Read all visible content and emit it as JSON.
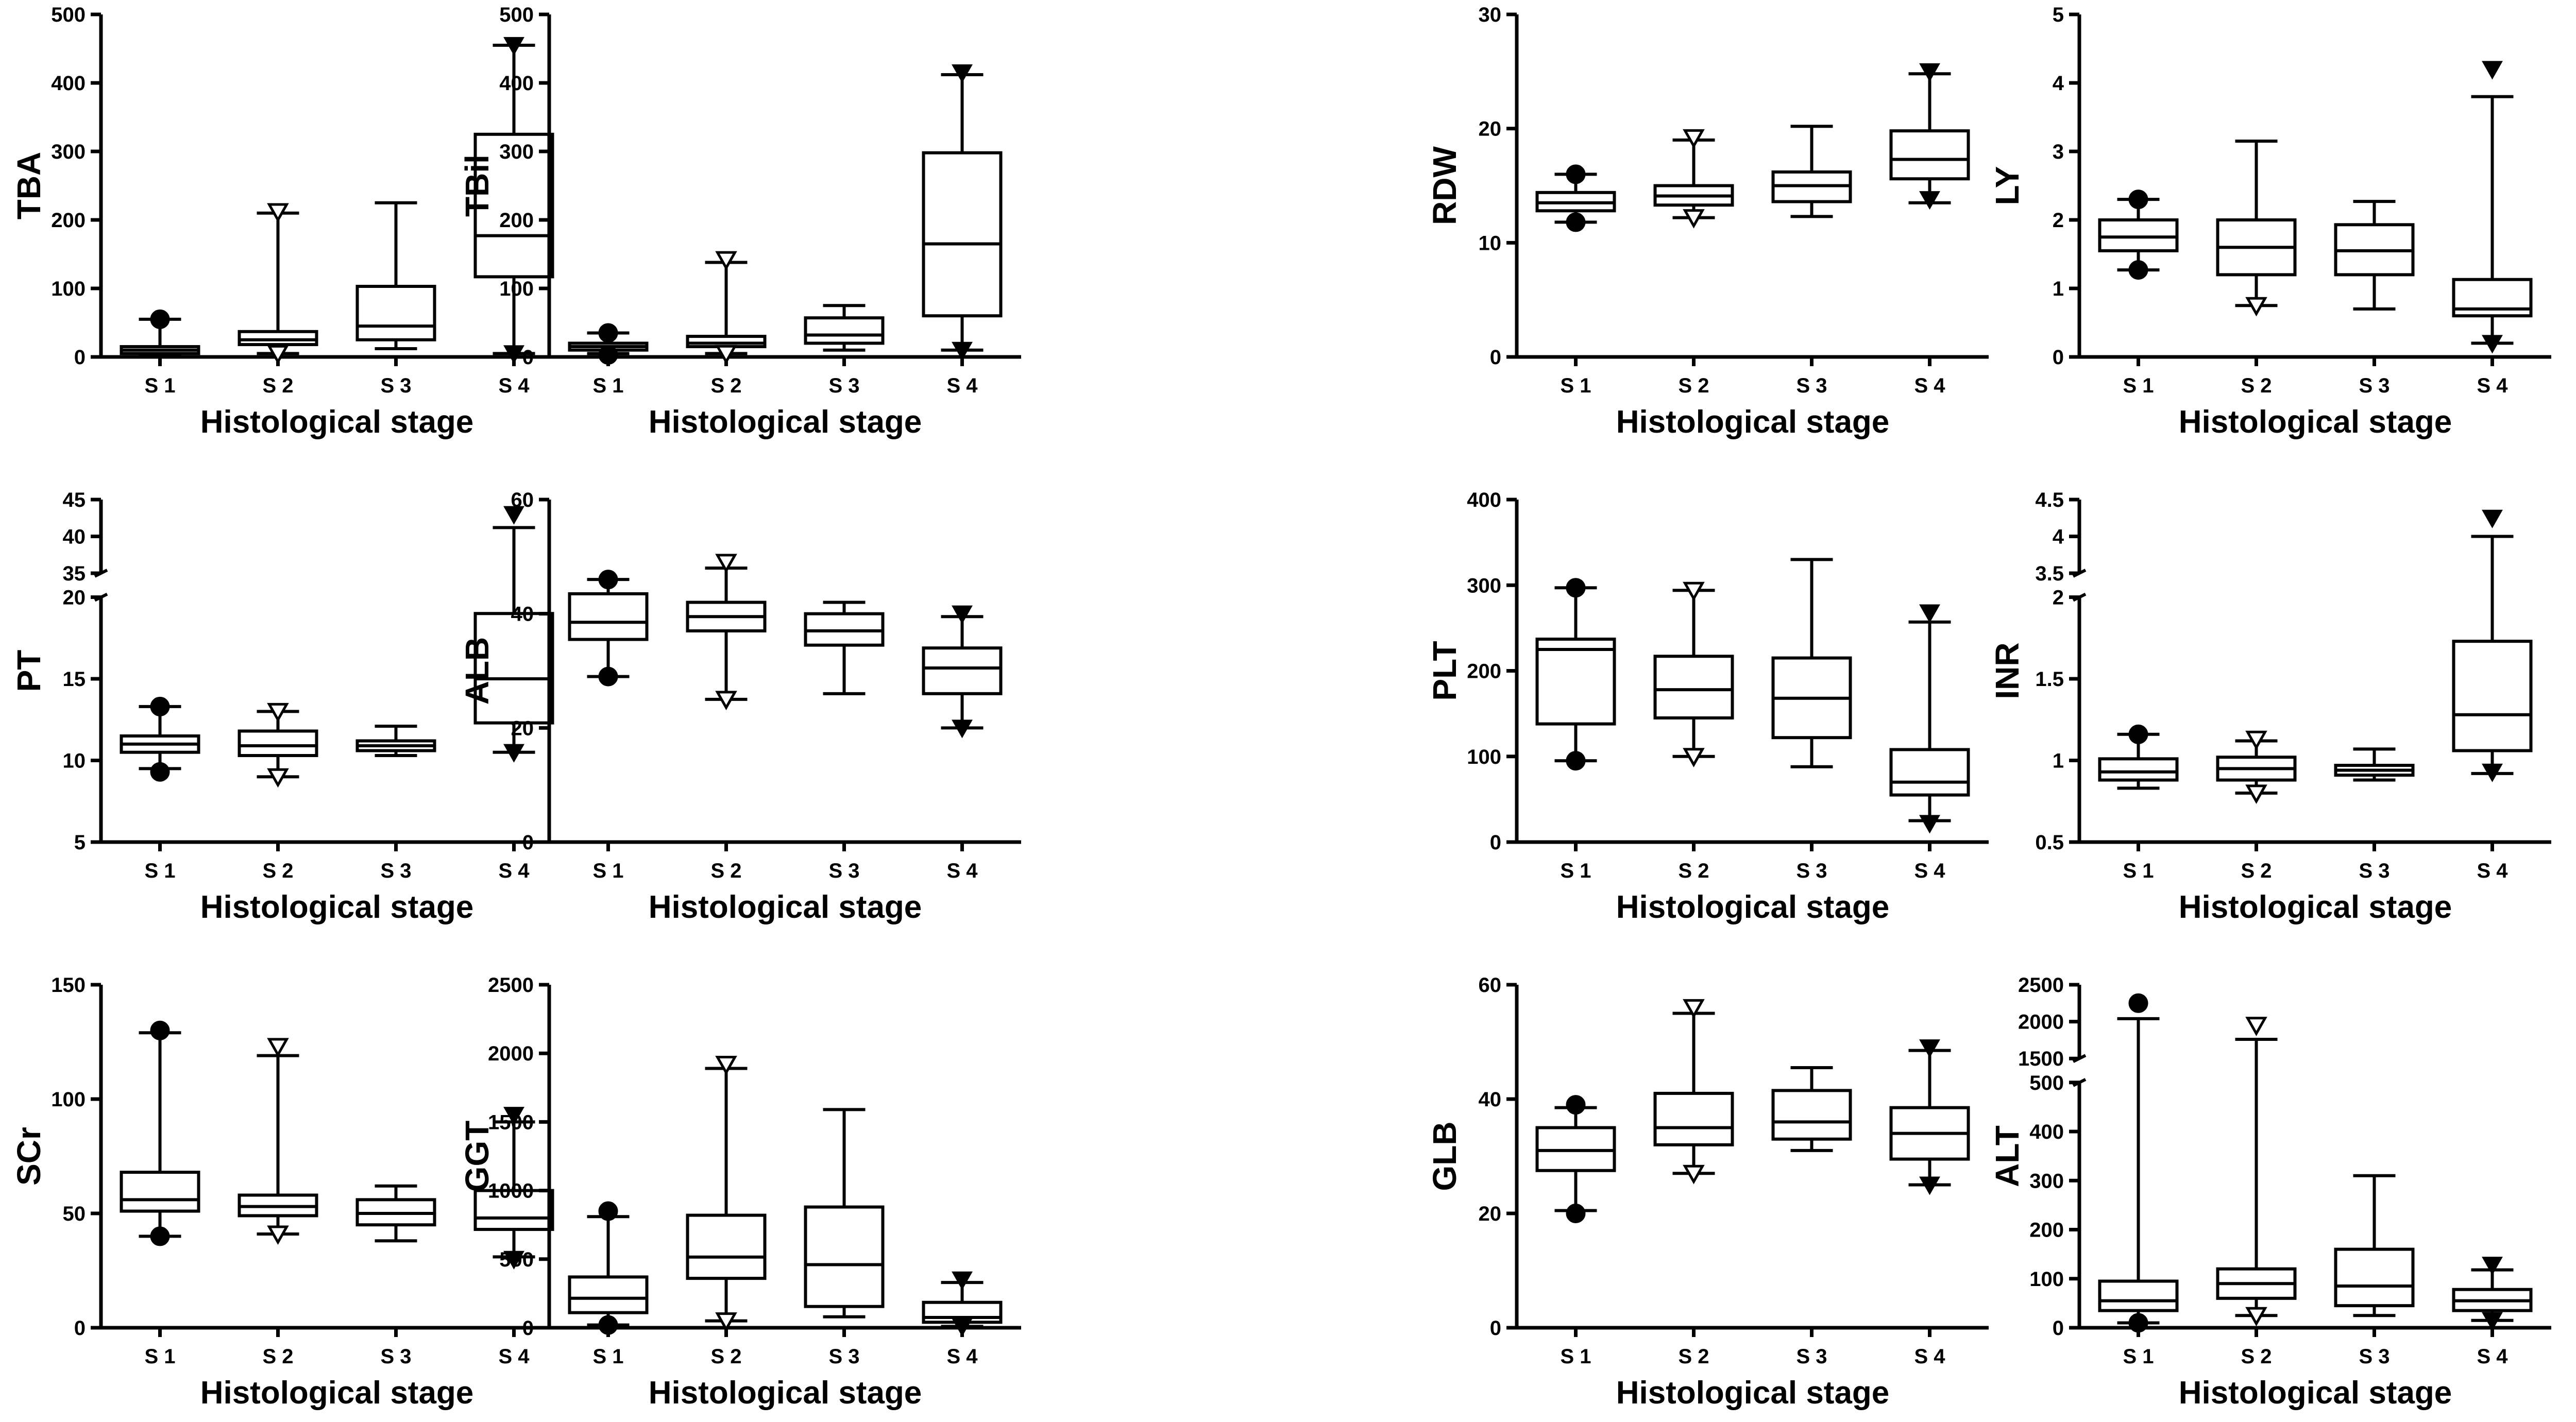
{
  "chart_data": [
    {
      "type": "box",
      "title": "",
      "ylabel": "TBA",
      "xlabel": "Histological stage",
      "ylim": [
        0,
        500
      ],
      "yticks": [
        0,
        100,
        200,
        300,
        400,
        500
      ],
      "categories": [
        "S 1",
        "S 2",
        "S 3",
        "S 4"
      ],
      "markers": [
        "circle-filled",
        "triangle-down-open",
        "square-filled",
        "triangle-down-filled"
      ],
      "boxes": [
        {
          "min": 1,
          "q1": 5,
          "median": 10,
          "q3": 15,
          "max": 55,
          "outliers": [
            55
          ]
        },
        {
          "min": 5,
          "q1": 18,
          "median": 25,
          "q3": 37,
          "max": 210,
          "outliers": [
            212,
            5
          ]
        },
        {
          "min": 12,
          "q1": 25,
          "median": 45,
          "q3": 103,
          "max": 225,
          "outliers": []
        },
        {
          "min": 5,
          "q1": 117,
          "median": 177,
          "q3": 325,
          "max": 455,
          "outliers": [
            455,
            5
          ]
        }
      ]
    },
    {
      "type": "box",
      "title": "",
      "ylabel": "TBil",
      "xlabel": "Histological stage",
      "ylim": [
        0,
        500
      ],
      "yticks": [
        0,
        100,
        200,
        300,
        400,
        500
      ],
      "categories": [
        "S 1",
        "S 2",
        "S 3",
        "S 4"
      ],
      "markers": [
        "circle-filled",
        "triangle-down-open",
        "square-filled",
        "triangle-down-filled"
      ],
      "boxes": [
        {
          "min": 5,
          "q1": 10,
          "median": 15,
          "q3": 20,
          "max": 35,
          "outliers": [
            35,
            3
          ]
        },
        {
          "min": 5,
          "q1": 15,
          "median": 20,
          "q3": 30,
          "max": 138,
          "outliers": [
            142,
            5
          ]
        },
        {
          "min": 10,
          "q1": 20,
          "median": 32,
          "q3": 57,
          "max": 75,
          "outliers": []
        },
        {
          "min": 10,
          "q1": 60,
          "median": 165,
          "q3": 298,
          "max": 412,
          "outliers": [
            415,
            10
          ]
        }
      ]
    },
    {
      "type": "box",
      "title": "",
      "ylabel": "RDW",
      "xlabel": "Histological stage",
      "ylim": [
        0,
        30
      ],
      "yticks": [
        0,
        10,
        20,
        30
      ],
      "categories": [
        "S 1",
        "S 2",
        "S 3",
        "S 4"
      ],
      "markers": [
        "circle-filled",
        "triangle-down-open",
        "square-filled",
        "triangle-down-filled"
      ],
      "boxes": [
        {
          "min": 11.8,
          "q1": 12.8,
          "median": 13.5,
          "q3": 14.4,
          "max": 16,
          "outliers": [
            16,
            11.8
          ]
        },
        {
          "min": 12.2,
          "q1": 13.3,
          "median": 14.1,
          "q3": 15,
          "max": 19,
          "outliers": [
            19.2,
            12.2
          ]
        },
        {
          "min": 12.3,
          "q1": 13.6,
          "median": 15,
          "q3": 16.2,
          "max": 20.2,
          "outliers": []
        },
        {
          "min": 13.5,
          "q1": 15.6,
          "median": 17.3,
          "q3": 19.8,
          "max": 24.8,
          "outliers": [
            25,
            13.8
          ]
        }
      ]
    },
    {
      "type": "box",
      "title": "",
      "ylabel": "LY",
      "xlabel": "Histological stage",
      "ylim": [
        0,
        5
      ],
      "yticks": [
        0,
        1,
        2,
        3,
        4,
        5
      ],
      "categories": [
        "S 1",
        "S 2",
        "S 3",
        "S 4"
      ],
      "markers": [
        "circle-filled",
        "triangle-down-open",
        "square-filled",
        "triangle-down-filled"
      ],
      "boxes": [
        {
          "min": 1.27,
          "q1": 1.55,
          "median": 1.75,
          "q3": 2,
          "max": 2.3,
          "outliers": [
            2.3,
            1.27
          ]
        },
        {
          "min": 0.75,
          "q1": 1.2,
          "median": 1.6,
          "q3": 2,
          "max": 3.15,
          "outliers": [
            0.75
          ]
        },
        {
          "min": 0.7,
          "q1": 1.2,
          "median": 1.55,
          "q3": 1.93,
          "max": 2.27,
          "outliers": []
        },
        {
          "min": 0.2,
          "q1": 0.6,
          "median": 0.7,
          "q3": 1.13,
          "max": 3.8,
          "outliers": [
            4.2,
            0.2
          ]
        }
      ]
    },
    {
      "type": "box",
      "title": "",
      "ylabel": "PT",
      "xlabel": "Histological stage",
      "yticks": [
        5,
        10,
        15,
        20,
        35,
        40,
        45
      ],
      "y_segments": [
        {
          "range": [
            5,
            20
          ],
          "ticks": [
            5,
            10,
            15,
            20
          ]
        },
        {
          "range": [
            35,
            45
          ],
          "ticks": [
            35,
            40,
            45
          ]
        }
      ],
      "categories": [
        "S 1",
        "S 2",
        "S 3",
        "S 4"
      ],
      "markers": [
        "circle-filled",
        "triangle-down-open",
        "square-filled",
        "triangle-down-filled"
      ],
      "boxes": [
        {
          "min": 9.5,
          "q1": 10.5,
          "median": 11,
          "q3": 11.5,
          "max": 13.3,
          "outliers": [
            13.3,
            9.3
          ]
        },
        {
          "min": 9,
          "q1": 10.3,
          "median": 10.9,
          "q3": 11.8,
          "max": 13,
          "outliers": [
            13,
            9
          ]
        },
        {
          "min": 10.3,
          "q1": 10.6,
          "median": 10.9,
          "q3": 11.2,
          "max": 12.1,
          "outliers": []
        },
        {
          "min": 10.5,
          "q1": 12.3,
          "median": 15,
          "q3": 19,
          "max": 41.2,
          "outliers": [
            43,
            10.5
          ]
        }
      ]
    },
    {
      "type": "box",
      "title": "",
      "ylabel": "ALB",
      "xlabel": "Histological stage",
      "ylim": [
        0,
        60
      ],
      "yticks": [
        0,
        20,
        40,
        60
      ],
      "categories": [
        "S 1",
        "S 2",
        "S 3",
        "S 4"
      ],
      "markers": [
        "circle-filled",
        "triangle-down-open",
        "square-filled",
        "triangle-down-filled"
      ],
      "boxes": [
        {
          "min": 29,
          "q1": 35.5,
          "median": 38.5,
          "q3": 43.5,
          "max": 46,
          "outliers": [
            46,
            29
          ]
        },
        {
          "min": 25,
          "q1": 37,
          "median": 39.5,
          "q3": 42,
          "max": 48,
          "outliers": [
            49,
            25
          ]
        },
        {
          "min": 26,
          "q1": 34.5,
          "median": 37,
          "q3": 40,
          "max": 42,
          "outliers": []
        },
        {
          "min": 20,
          "q1": 26,
          "median": 30.5,
          "q3": 34,
          "max": 39.5,
          "outliers": [
            40,
            20
          ]
        }
      ]
    },
    {
      "type": "box",
      "title": "",
      "ylabel": "PLT",
      "xlabel": "Histological stage",
      "ylim": [
        0,
        400
      ],
      "yticks": [
        0,
        100,
        200,
        300,
        400
      ],
      "categories": [
        "S 1",
        "S 2",
        "S 3",
        "S 4"
      ],
      "markers": [
        "circle-filled",
        "triangle-down-open",
        "square-filled",
        "triangle-down-filled"
      ],
      "boxes": [
        {
          "min": 95,
          "q1": 138,
          "median": 225,
          "q3": 237,
          "max": 297,
          "outliers": [
            297,
            95
          ]
        },
        {
          "min": 100,
          "q1": 145,
          "median": 178,
          "q3": 217,
          "max": 294,
          "outliers": [
            294,
            100
          ]
        },
        {
          "min": 88,
          "q1": 122,
          "median": 168,
          "q3": 215,
          "max": 330,
          "outliers": []
        },
        {
          "min": 25,
          "q1": 55,
          "median": 70,
          "q3": 108,
          "max": 257,
          "outliers": [
            268,
            22
          ]
        }
      ]
    },
    {
      "type": "box",
      "title": "",
      "ylabel": "INR",
      "xlabel": "Histological stage",
      "yticks": [
        0.5,
        1.0,
        1.5,
        2.0,
        3.5,
        4.0,
        4.5
      ],
      "y_segments": [
        {
          "range": [
            0.5,
            2.0
          ],
          "ticks": [
            0.5,
            1.0,
            1.5,
            2.0
          ]
        },
        {
          "range": [
            3.5,
            4.5
          ],
          "ticks": [
            3.5,
            4.0,
            4.5
          ]
        }
      ],
      "categories": [
        "S 1",
        "S 2",
        "S 3",
        "S 4"
      ],
      "markers": [
        "circle-filled",
        "triangle-down-open",
        "square-filled",
        "triangle-down-filled"
      ],
      "boxes": [
        {
          "min": 0.83,
          "q1": 0.88,
          "median": 0.93,
          "q3": 1.01,
          "max": 1.16,
          "outliers": [
            1.16
          ]
        },
        {
          "min": 0.8,
          "q1": 0.88,
          "median": 0.95,
          "q3": 1.02,
          "max": 1.12,
          "outliers": [
            1.13,
            0.8
          ]
        },
        {
          "min": 0.88,
          "q1": 0.91,
          "median": 0.94,
          "q3": 0.97,
          "max": 1.07,
          "outliers": []
        },
        {
          "min": 0.92,
          "q1": 1.06,
          "median": 1.28,
          "q3": 1.73,
          "max": 4.0,
          "outliers": [
            4.25,
            0.93
          ]
        }
      ]
    },
    {
      "type": "box",
      "title": "",
      "ylabel": "SCr",
      "xlabel": "Histological stage",
      "ylim": [
        0,
        150
      ],
      "yticks": [
        0,
        50,
        100,
        150
      ],
      "categories": [
        "S 1",
        "S 2",
        "S 3",
        "S 4"
      ],
      "markers": [
        "circle-filled",
        "triangle-down-open",
        "square-filled",
        "triangle-down-filled"
      ],
      "boxes": [
        {
          "min": 40,
          "q1": 51,
          "median": 56,
          "q3": 68,
          "max": 129,
          "outliers": [
            130,
            40
          ]
        },
        {
          "min": 41,
          "q1": 49,
          "median": 53,
          "q3": 58,
          "max": 119,
          "outliers": [
            123,
            41
          ]
        },
        {
          "min": 38,
          "q1": 45,
          "median": 50,
          "q3": 56,
          "max": 62,
          "outliers": []
        },
        {
          "min": 31,
          "q1": 43,
          "median": 48,
          "q3": 60,
          "max": 90,
          "outliers": [
            93,
            30
          ]
        }
      ]
    },
    {
      "type": "box",
      "title": "",
      "ylabel": "GGT",
      "xlabel": "Histological stage",
      "ylim": [
        0,
        2500
      ],
      "yticks": [
        0,
        500,
        1000,
        1500,
        2000,
        2500
      ],
      "categories": [
        "S 1",
        "S 2",
        "S 3",
        "S 4"
      ],
      "markers": [
        "circle-filled",
        "triangle-down-open",
        "square-filled",
        "triangle-down-filled"
      ],
      "boxes": [
        {
          "min": 20,
          "q1": 110,
          "median": 215,
          "q3": 370,
          "max": 810,
          "outliers": [
            850,
            20
          ]
        },
        {
          "min": 50,
          "q1": 360,
          "median": 515,
          "q3": 820,
          "max": 1890,
          "outliers": [
            1920,
            50
          ]
        },
        {
          "min": 80,
          "q1": 155,
          "median": 460,
          "q3": 880,
          "max": 1590,
          "outliers": []
        },
        {
          "min": 10,
          "q1": 40,
          "median": 75,
          "q3": 185,
          "max": 330,
          "outliers": [
            350,
            10
          ]
        }
      ]
    },
    {
      "type": "box",
      "title": "",
      "ylabel": "GLB",
      "xlabel": "Histological stage",
      "ylim": [
        0,
        60
      ],
      "yticks": [
        0,
        20,
        40,
        60
      ],
      "categories": [
        "S 1",
        "S 2",
        "S 3",
        "S 4"
      ],
      "markers": [
        "circle-filled",
        "triangle-down-open",
        "square-filled",
        "triangle-down-filled"
      ],
      "boxes": [
        {
          "min": 20.5,
          "q1": 27.5,
          "median": 31,
          "q3": 35,
          "max": 38.5,
          "outliers": [
            39,
            20
          ]
        },
        {
          "min": 27,
          "q1": 32,
          "median": 35,
          "q3": 41,
          "max": 55,
          "outliers": [
            56,
            27
          ]
        },
        {
          "min": 31,
          "q1": 33,
          "median": 36,
          "q3": 41.5,
          "max": 45.5,
          "outliers": []
        },
        {
          "min": 25,
          "q1": 29.5,
          "median": 34,
          "q3": 38.5,
          "max": 48.5,
          "outliers": [
            49,
            25
          ]
        }
      ]
    },
    {
      "type": "box",
      "title": "",
      "ylabel": "ALT",
      "xlabel": "Histological stage",
      "yticks": [
        0,
        100,
        200,
        300,
        400,
        500,
        1500,
        2000,
        2500
      ],
      "y_segments": [
        {
          "range": [
            0,
            500
          ],
          "ticks": [
            0,
            100,
            200,
            300,
            400,
            500
          ]
        },
        {
          "range": [
            1500,
            2500
          ],
          "ticks": [
            1500,
            2000,
            2500
          ]
        }
      ],
      "categories": [
        "S 1",
        "S 2",
        "S 3",
        "S 4"
      ],
      "markers": [
        "circle-filled",
        "triangle-down-open",
        "square-filled",
        "triangle-down-filled"
      ],
      "boxes": [
        {
          "min": 10,
          "q1": 35,
          "median": 55,
          "q3": 95,
          "max": 2040,
          "outliers": [
            2250,
            10
          ]
        },
        {
          "min": 25,
          "q1": 60,
          "median": 90,
          "q3": 120,
          "max": 1760,
          "outliers": [
            1950,
            25
          ]
        },
        {
          "min": 25,
          "q1": 45,
          "median": 85,
          "q3": 160,
          "max": 310,
          "outliers": []
        },
        {
          "min": 15,
          "q1": 35,
          "median": 55,
          "q3": 78,
          "max": 118,
          "outliers": [
            128,
            15
          ]
        }
      ]
    }
  ]
}
